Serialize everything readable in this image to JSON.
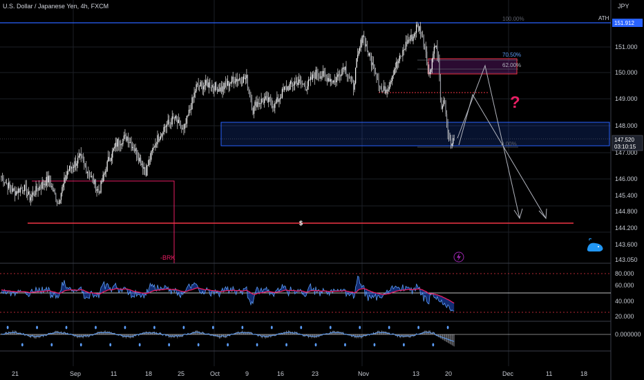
{
  "header": {
    "symbol_title": "U.S. Dollar / Japanese Yen, 4h, FXCM",
    "currency": "JPY"
  },
  "price_axis": {
    "ticks": [
      "151.000",
      "150.000",
      "149.000",
      "148.000",
      "147.000",
      "146.000",
      "145.400",
      "144.800",
      "144.200",
      "143.600",
      "143.050"
    ],
    "ath_label": "ATH",
    "ath_value": "151.912",
    "last_price": "147.520",
    "countdown": "03:10:15"
  },
  "fib_levels": [
    "100.00%",
    "70.50%",
    "62.00%",
    "0.00%"
  ],
  "annotations": {
    "dollar_sign": "$",
    "brk_label": "-BRK",
    "question_mark": "?"
  },
  "time_axis": {
    "labels": [
      "21",
      "Sep",
      "11",
      "18",
      "25",
      "Oct",
      "9",
      "16",
      "23",
      "Nov",
      "13",
      "20",
      "Dec",
      "11",
      "18"
    ]
  },
  "rsi_axis": {
    "ticks": [
      "80.000",
      "60.000",
      "40.000",
      "20.000"
    ]
  },
  "osc_axis": {
    "value": "0.000000"
  },
  "colors": {
    "background": "#000000",
    "candle": "#e6e6e6",
    "ath_line": "#2962ff",
    "support_line": "#f23645",
    "zone_blue": "#2962ff",
    "zone_purple": "#9c27b0",
    "rsi_ma": "#e91e63",
    "question": "#e91e63"
  },
  "chart_data": {
    "type": "candlestick",
    "title": "U.S. Dollar / Japanese Yen, 4h, FXCM",
    "ylim": [
      143.05,
      152.0
    ],
    "anchor_prices": [
      [
        0,
        146.1
      ],
      [
        4,
        145.5
      ],
      [
        7,
        145.7
      ],
      [
        9,
        145.3
      ],
      [
        12,
        145.7
      ],
      [
        15,
        146.0
      ],
      [
        18,
        145.1
      ],
      [
        21,
        146.3
      ],
      [
        25,
        146.8
      ],
      [
        28,
        146.2
      ],
      [
        31,
        145.5
      ],
      [
        34,
        146.7
      ],
      [
        37,
        147.4
      ],
      [
        40,
        147.6
      ],
      [
        43,
        147.0
      ],
      [
        46,
        146.3
      ],
      [
        49,
        147.4
      ],
      [
        52,
        148.0
      ],
      [
        55,
        148.3
      ],
      [
        58,
        147.8
      ],
      [
        62,
        149.5
      ],
      [
        66,
        149.6
      ],
      [
        70,
        149.4
      ],
      [
        74,
        149.8
      ],
      [
        78,
        149.8
      ],
      [
        80,
        148.6
      ],
      [
        81,
        148.9
      ],
      [
        84,
        149.0
      ],
      [
        87,
        148.8
      ],
      [
        90,
        149.4
      ],
      [
        94,
        149.7
      ],
      [
        97,
        149.5
      ],
      [
        100,
        150.0
      ],
      [
        103,
        149.9
      ],
      [
        106,
        149.7
      ],
      [
        109,
        150.3
      ],
      [
        112,
        149.5
      ],
      [
        113,
        150.4
      ],
      [
        115,
        151.5
      ],
      [
        117,
        150.6
      ],
      [
        119,
        150.1
      ],
      [
        121,
        149.3
      ],
      [
        123,
        149.5
      ],
      [
        125,
        150.2
      ],
      [
        127,
        150.6
      ],
      [
        129,
        151.2
      ],
      [
        131,
        151.4
      ],
      [
        132,
        151.75
      ],
      [
        133,
        151.7
      ],
      [
        135,
        150.9
      ],
      [
        136,
        149.9
      ],
      [
        138,
        151.2
      ],
      [
        139,
        150.4
      ],
      [
        140,
        148.5
      ],
      [
        141,
        149.0
      ],
      [
        142,
        147.6
      ],
      [
        143,
        147.3
      ],
      [
        144,
        147.52
      ]
    ],
    "support_level": 144.45,
    "ath": 151.912
  }
}
